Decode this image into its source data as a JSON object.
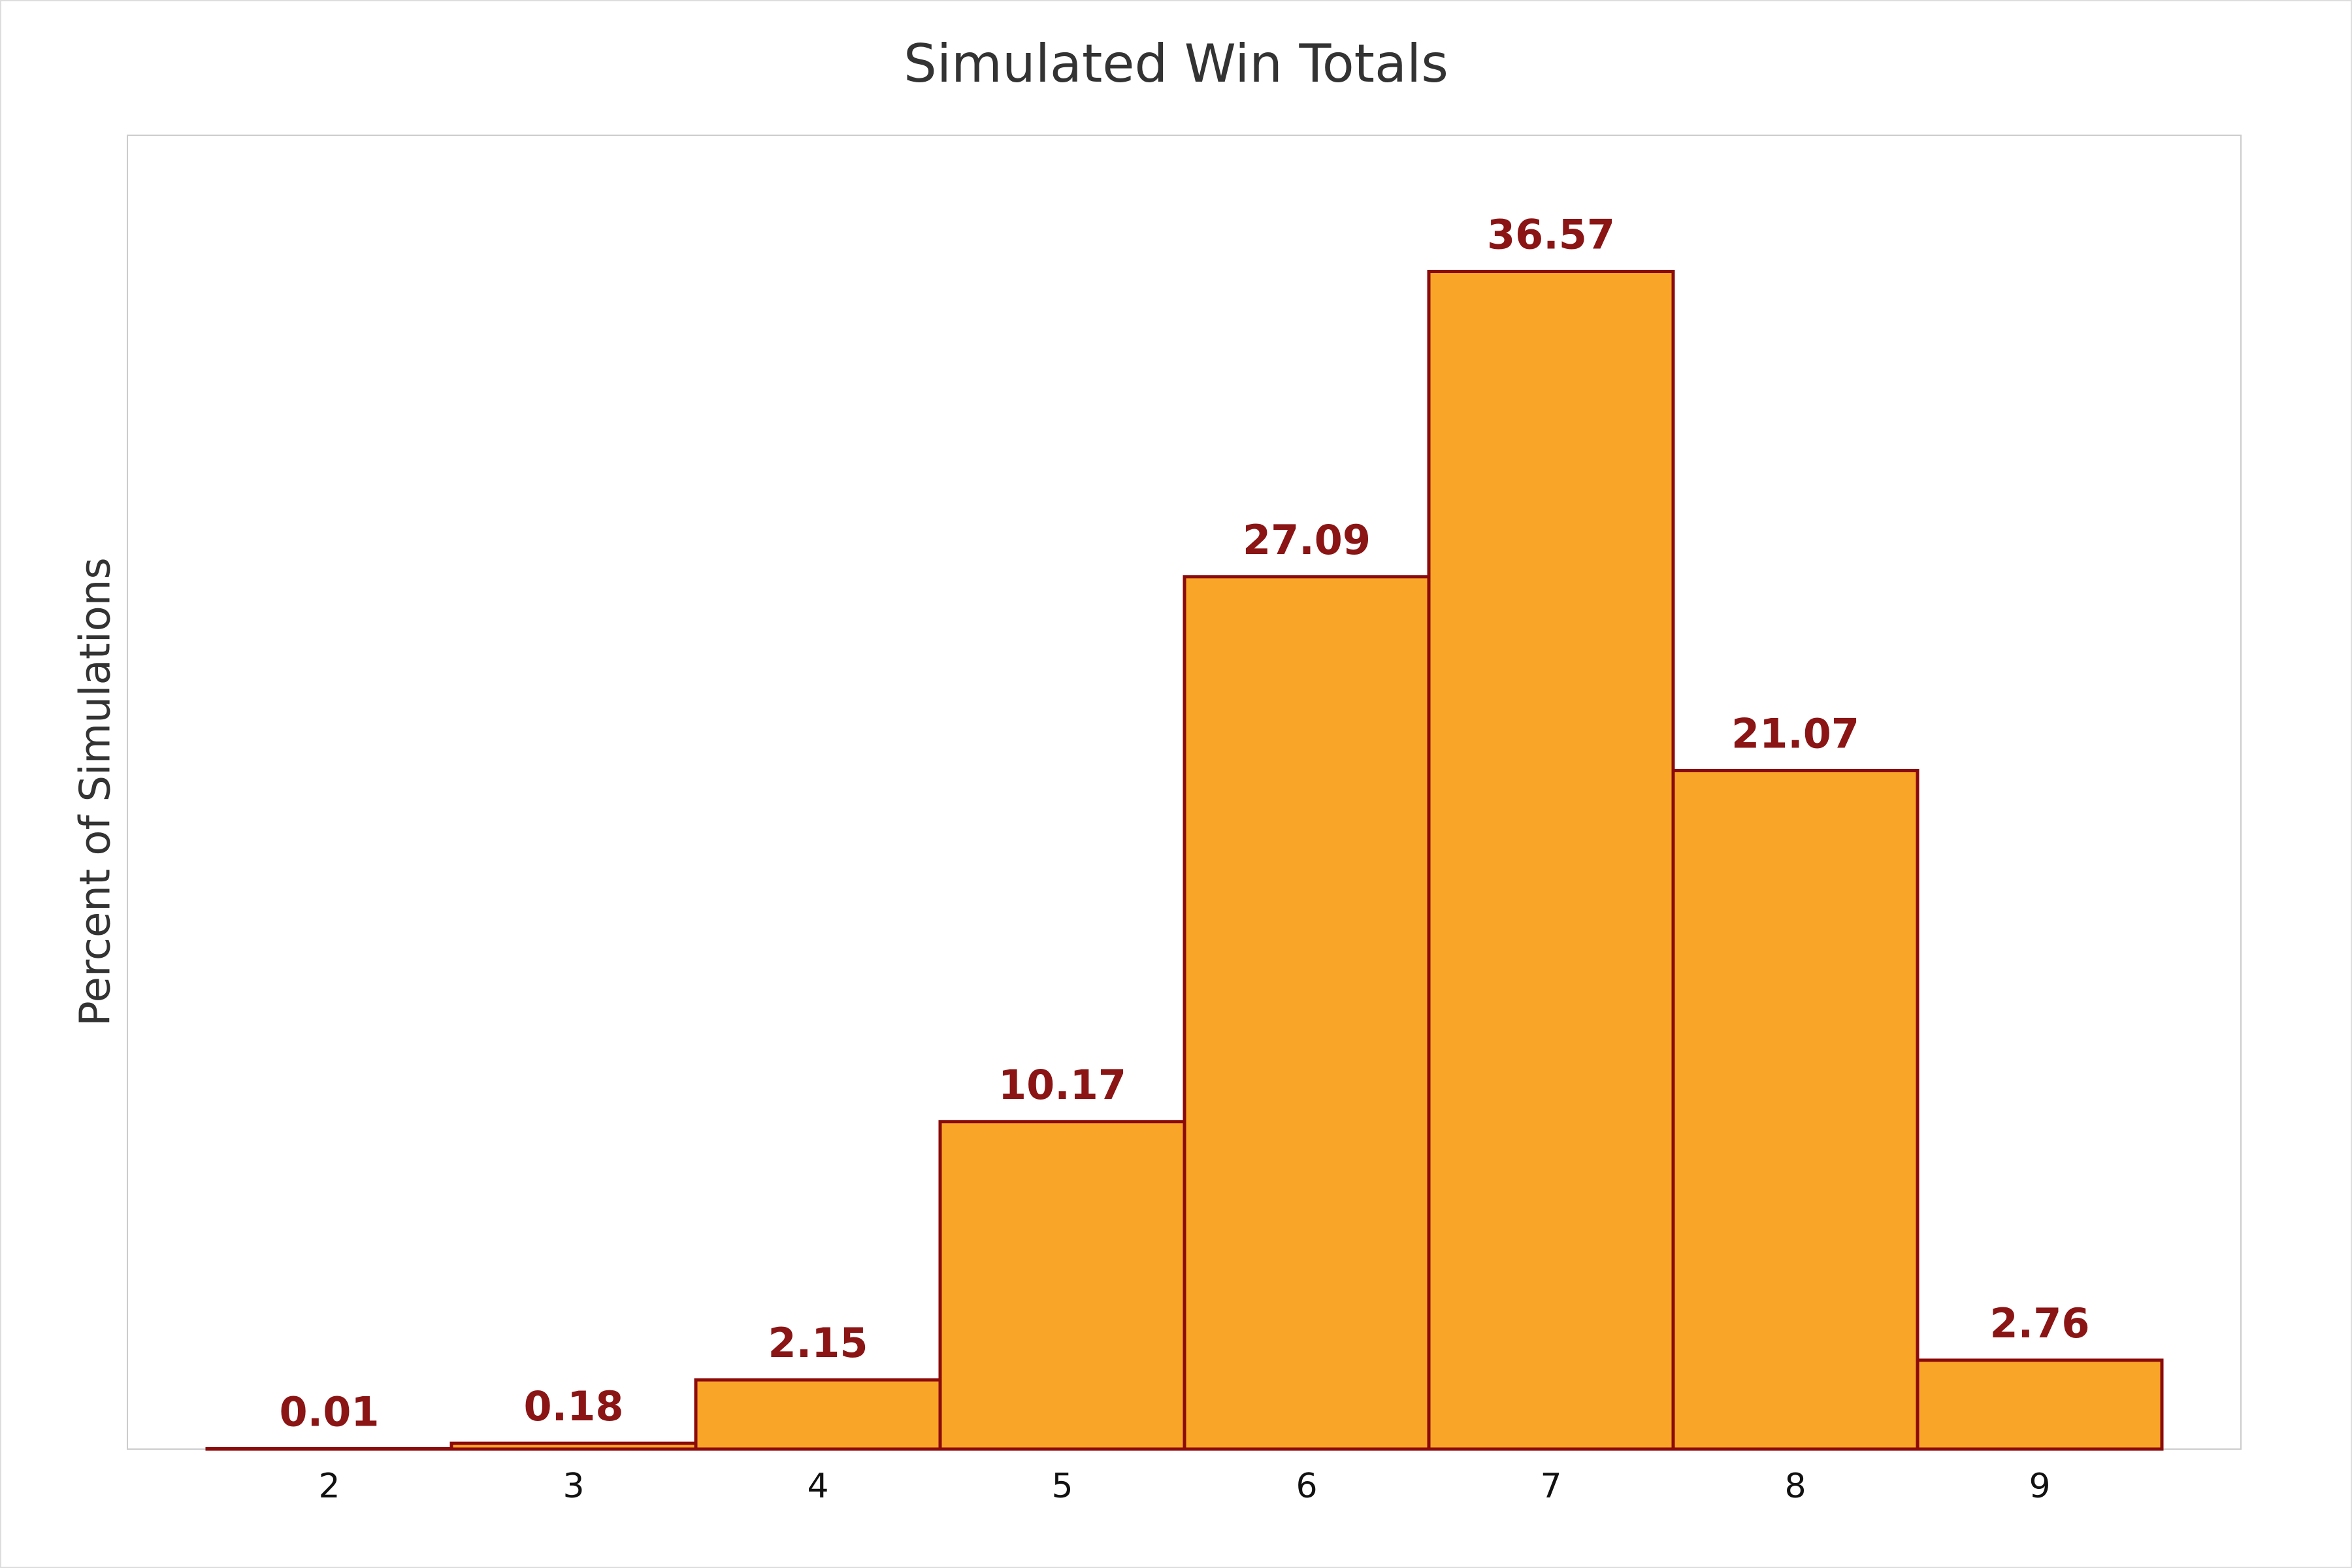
{
  "chart_data": {
    "type": "bar",
    "title": "Simulated Win Totals",
    "y_label": "Percent of Simulations",
    "categories": [
      "2",
      "3",
      "4",
      "5",
      "6",
      "7",
      "8",
      "9"
    ],
    "values": [
      0.01,
      0.18,
      2.15,
      10.17,
      27.09,
      36.57,
      21.07,
      2.76
    ],
    "color": "#f9a528",
    "edge_color": "#8b0a0a",
    "label_color": "#8b1414",
    "ylim": [
      0,
      40.8
    ]
  }
}
